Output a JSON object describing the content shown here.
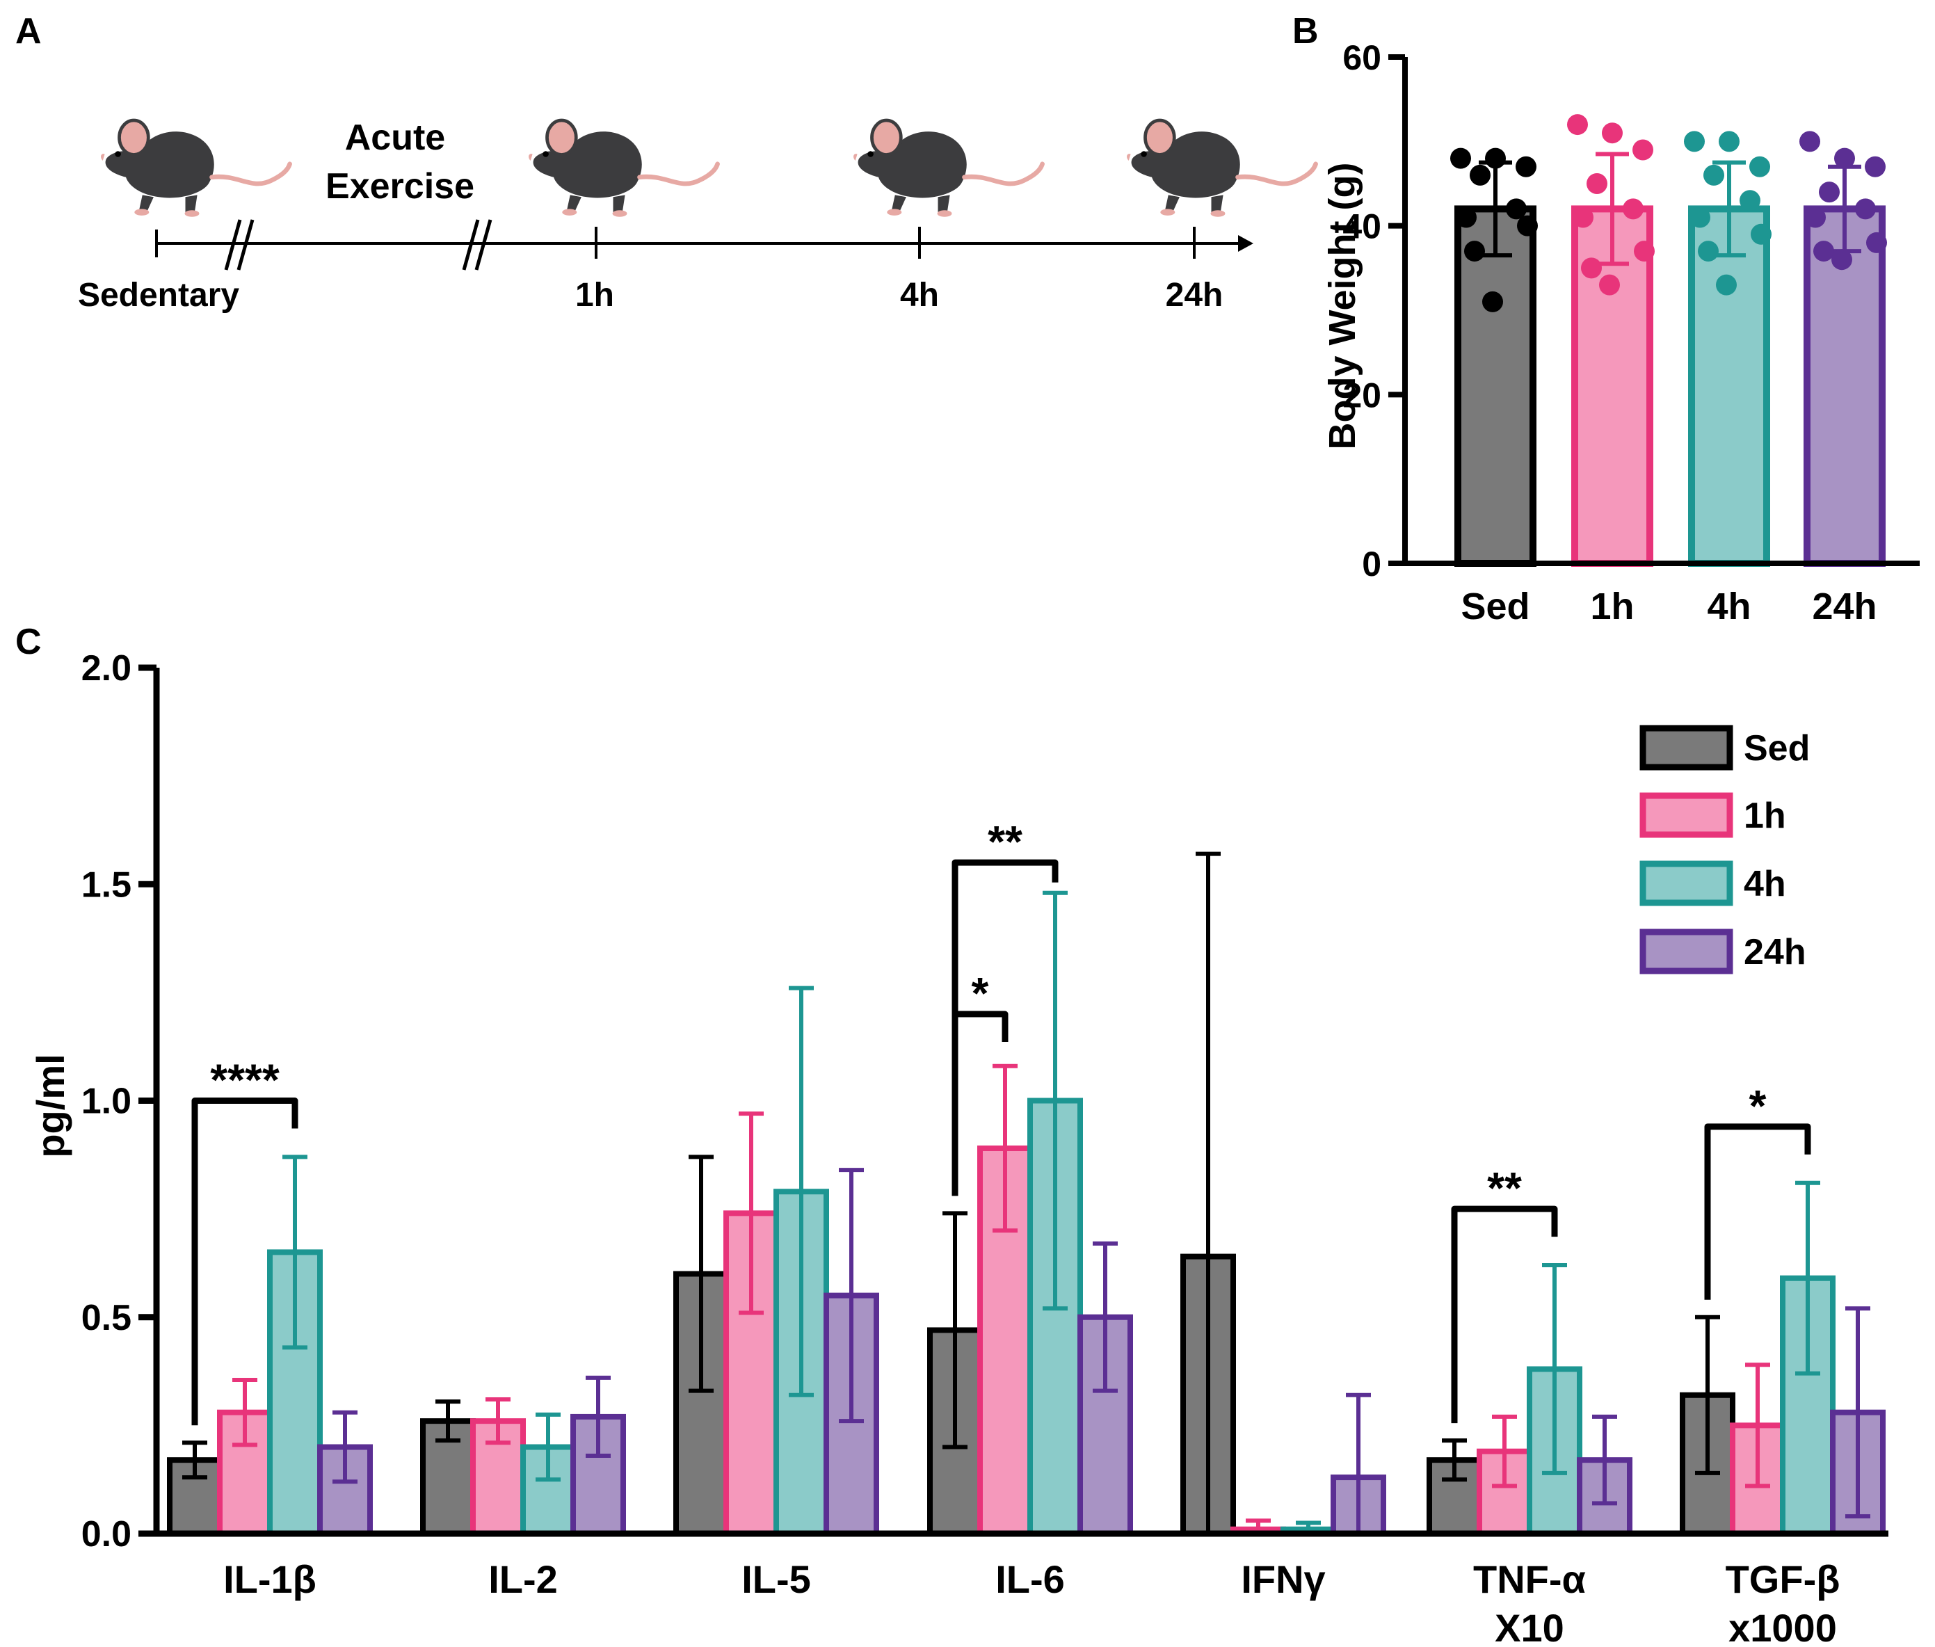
{
  "panels": {
    "a": "A",
    "b": "B",
    "c": "C"
  },
  "timeline": {
    "exercise_label_line1": "Acute",
    "exercise_label_line2": "Exercise",
    "points": [
      "Sedentary",
      "1h",
      "4h",
      "24h"
    ]
  },
  "colors": {
    "sed_stroke": "#000000",
    "sed_fill": "#7a7a7a",
    "h1_stroke": "#e8347a",
    "h1_fill": "#f598bb",
    "h4_stroke": "#1d9692",
    "h4_fill": "#8bcbc9",
    "h24_stroke": "#5b2f93",
    "h24_fill": "#a893c4"
  },
  "chart_data": [
    {
      "type": "bar",
      "categories": [
        "Sed",
        "1h",
        "4h",
        "24h"
      ],
      "values": [
        42.0,
        42.0,
        42.0,
        42.0
      ],
      "error": [
        5.5,
        6.5,
        5.5,
        5.0
      ],
      "points": [
        [
          48,
          48,
          47,
          46,
          42,
          41,
          40,
          37,
          31
        ],
        [
          52,
          51,
          49,
          45,
          42,
          41,
          37,
          35,
          33
        ],
        [
          50,
          50,
          47,
          46,
          43,
          41,
          39,
          37,
          33
        ],
        [
          50,
          48,
          47,
          44,
          42,
          41,
          38,
          37,
          36
        ]
      ],
      "ylabel": "Body Weight (g)",
      "ylim": [
        0,
        60
      ],
      "yticks": [
        "0",
        "20",
        "40",
        "60"
      ],
      "ytick_values": [
        0,
        20,
        40,
        60
      ]
    },
    {
      "type": "bar",
      "categories": [
        [
          "IL-1β"
        ],
        [
          "IL-2"
        ],
        [
          "IL-5"
        ],
        [
          "IL-6"
        ],
        [
          "IFNγ"
        ],
        [
          "TNF-α",
          "X10"
        ],
        [
          "TGF-β",
          "x1000"
        ]
      ],
      "series": [
        {
          "name": "Sed",
          "values": [
            0.17,
            0.26,
            0.6,
            0.47,
            0.64,
            0.17,
            0.32
          ],
          "error": [
            0.04,
            0.045,
            0.27,
            0.27,
            0.93,
            0.045,
            0.18
          ]
        },
        {
          "name": " 1h",
          "values": [
            0.28,
            0.26,
            0.74,
            0.89,
            0.01,
            0.19,
            0.25
          ],
          "error": [
            0.075,
            0.05,
            0.23,
            0.19,
            0.02,
            0.08,
            0.14
          ]
        },
        {
          "name": " 4h",
          "values": [
            0.65,
            0.2,
            0.79,
            1.0,
            0.01,
            0.38,
            0.59
          ],
          "error": [
            0.22,
            0.075,
            0.47,
            0.48,
            0.015,
            0.24,
            0.22
          ]
        },
        {
          "name": "24h",
          "values": [
            0.2,
            0.27,
            0.55,
            0.5,
            0.13,
            0.17,
            0.28
          ],
          "error": [
            0.08,
            0.09,
            0.29,
            0.17,
            0.19,
            0.1,
            0.24
          ]
        }
      ],
      "ylabel": "pg/ml",
      "ylim": [
        0,
        2.0
      ],
      "yticks": [
        "0.0",
        "0.5",
        "1.0",
        "1.5",
        "2.0"
      ],
      "ytick_values": [
        0,
        0.5,
        1.0,
        1.5,
        2.0
      ],
      "legend_position": "top-right",
      "annotations": [
        {
          "label": "****",
          "category": 0,
          "from_series": 0,
          "to_series": 2,
          "y": 1.0
        },
        {
          "label": "*",
          "category": 3,
          "from_series": 0,
          "to_series": 1,
          "y": 1.2
        },
        {
          "label": "**",
          "category": 3,
          "from_series": 0,
          "to_series": 2,
          "y": 1.55
        },
        {
          "label": "**",
          "category": 5,
          "from_series": 0,
          "to_series": 2,
          "y": 0.75
        },
        {
          "label": "*",
          "category": 6,
          "from_series": 0,
          "to_series": 2,
          "y": 0.94
        }
      ]
    }
  ]
}
